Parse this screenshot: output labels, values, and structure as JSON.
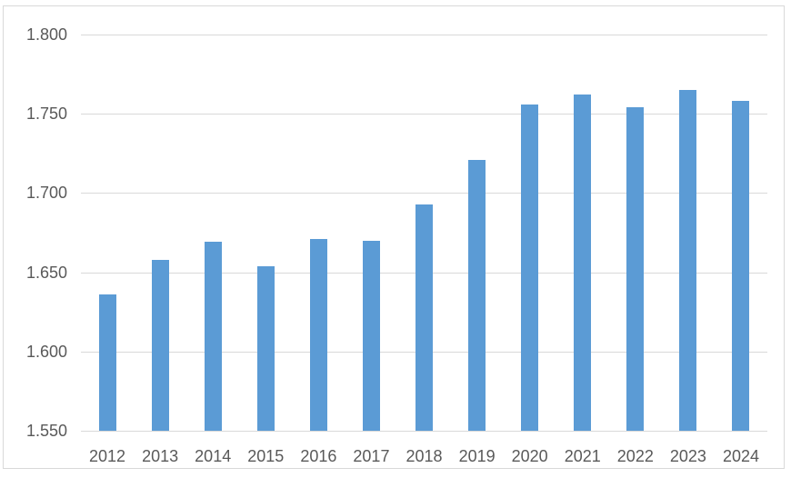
{
  "chart_data": {
    "type": "bar",
    "title": "",
    "categories": [
      "2012",
      "2013",
      "2014",
      "2015",
      "2016",
      "2017",
      "2018",
      "2019",
      "2020",
      "2021",
      "2022",
      "2023",
      "2024"
    ],
    "values": [
      1.636,
      1.658,
      1.669,
      1.654,
      1.671,
      1.67,
      1.693,
      1.721,
      1.756,
      1.762,
      1.754,
      1.765,
      1.758
    ],
    "y_tick_labels": [
      "1.800",
      "1.750",
      "1.700",
      "1.650",
      "1.600",
      "1.550"
    ],
    "ylim": [
      1.55,
      1.8
    ],
    "y_step": 0.05,
    "xlabel": "",
    "ylabel": "",
    "grid": "horizontal",
    "legend_position": "none",
    "colors": {
      "bar": "#5b9bd5",
      "gridline": "#d9d9d9",
      "axis_text": "#595959",
      "frame_border": "#d9d9d9",
      "background": "#ffffff"
    }
  }
}
